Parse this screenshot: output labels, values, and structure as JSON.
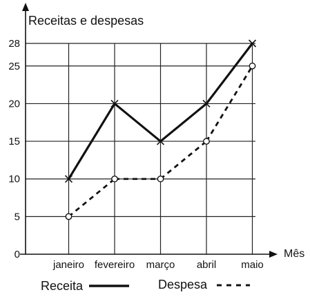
{
  "chart_data": {
    "type": "line",
    "title": "",
    "ylabel": "Receitas e despesas",
    "xlabel": "Mês",
    "categories": [
      "janeiro",
      "fevereiro",
      "março",
      "abril",
      "maio"
    ],
    "yticks": [
      0,
      5,
      10,
      15,
      20,
      25,
      28
    ],
    "ylim": [
      0,
      28
    ],
    "grid": true,
    "legend_position": "bottom",
    "series": [
      {
        "name": "Receita",
        "values": [
          10,
          20,
          15,
          20,
          28
        ],
        "marker": "x",
        "line_style": "solid"
      },
      {
        "name": "Despesa",
        "values": [
          5,
          10,
          10,
          15,
          25
        ],
        "marker": "o",
        "line_style": "dashed"
      }
    ]
  },
  "colors": {
    "line": "#111111",
    "grid": "#222222"
  }
}
